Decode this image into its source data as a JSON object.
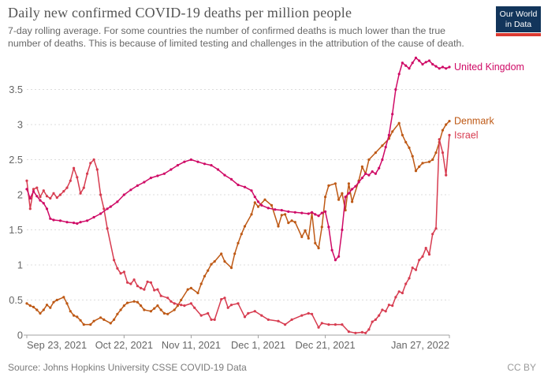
{
  "header": {
    "title": "Daily new confirmed COVID-19 deaths per million people",
    "subtitle": "7-day rolling average. For some countries the number of confirmed deaths is much lower than the true number of deaths. This is because of limited testing and challenges in the attribution of the cause of death.",
    "logo": {
      "line1": "Our World",
      "line2": "in Data",
      "bg_color": "#12355b",
      "bar_color": "#dc3930"
    }
  },
  "chart_data": {
    "type": "line",
    "title": "Daily new confirmed COVID-19 deaths per million people",
    "grid": true,
    "legend_position": "end-of-line",
    "colors": {
      "gridline": "#dcdcdc",
      "axis": "#a0a0a0",
      "tick_text": "#666666"
    },
    "y_axis": {
      "min": 0,
      "max": 4,
      "tick_step": 0.5,
      "tick_labels": [
        "0",
        "0.5",
        "1",
        "1.5",
        "2",
        "2.5",
        "3",
        "3.5"
      ]
    },
    "x_axis": {
      "start_date": "Sep 23, 2021",
      "end_date": "Jan 27, 2022",
      "total_days": 126,
      "ticks": [
        {
          "label": "Sep 23, 2021",
          "day": 0
        },
        {
          "label": "Oct 22, 2021",
          "day": 29
        },
        {
          "label": "Nov 11, 2021",
          "day": 49
        },
        {
          "label": "Dec 1, 2021",
          "day": 69
        },
        {
          "label": "Dec 21, 2021",
          "day": 89
        },
        {
          "label": "Jan 27, 2022",
          "day": 126
        }
      ]
    },
    "series": [
      {
        "name": "Denmark",
        "color": "#BE5915",
        "points": [
          [
            0,
            0.45
          ],
          [
            1,
            0.42
          ],
          [
            2,
            0.4
          ],
          [
            3,
            0.36
          ],
          [
            4,
            0.31
          ],
          [
            5,
            0.36
          ],
          [
            6,
            0.43
          ],
          [
            7,
            0.39
          ],
          [
            8,
            0.47
          ],
          [
            9,
            0.5
          ],
          [
            11,
            0.54
          ],
          [
            12,
            0.45
          ],
          [
            13,
            0.34
          ],
          [
            14,
            0.28
          ],
          [
            15,
            0.26
          ],
          [
            16,
            0.21
          ],
          [
            17,
            0.15
          ],
          [
            19,
            0.15
          ],
          [
            20,
            0.2
          ],
          [
            22,
            0.25
          ],
          [
            23,
            0.22
          ],
          [
            25,
            0.17
          ],
          [
            26,
            0.22
          ],
          [
            27,
            0.3
          ],
          [
            28,
            0.36
          ],
          [
            29,
            0.42
          ],
          [
            30,
            0.46
          ],
          [
            32,
            0.48
          ],
          [
            33,
            0.47
          ],
          [
            34,
            0.42
          ],
          [
            35,
            0.36
          ],
          [
            37,
            0.34
          ],
          [
            38,
            0.38
          ],
          [
            39,
            0.42
          ],
          [
            40,
            0.36
          ],
          [
            41,
            0.31
          ],
          [
            42,
            0.3
          ],
          [
            44,
            0.36
          ],
          [
            45,
            0.42
          ],
          [
            46,
            0.5
          ],
          [
            48,
            0.65
          ],
          [
            49,
            0.67
          ],
          [
            51,
            0.6
          ],
          [
            52,
            0.73
          ],
          [
            53,
            0.84
          ],
          [
            54,
            0.92
          ],
          [
            55,
            1.01
          ],
          [
            56,
            1.05
          ],
          [
            58,
            1.16
          ],
          [
            59,
            1.05
          ],
          [
            61,
            0.96
          ],
          [
            62,
            1.16
          ],
          [
            63,
            1.31
          ],
          [
            64,
            1.44
          ],
          [
            65,
            1.55
          ],
          [
            67,
            1.72
          ],
          [
            68,
            1.89
          ],
          [
            69,
            1.83
          ],
          [
            71,
            1.93
          ],
          [
            73,
            1.85
          ],
          [
            75,
            1.55
          ],
          [
            76,
            1.71
          ],
          [
            77,
            1.72
          ],
          [
            78,
            1.6
          ],
          [
            79,
            1.63
          ],
          [
            80,
            1.61
          ],
          [
            82,
            1.4
          ],
          [
            83,
            1.49
          ],
          [
            84,
            1.38
          ],
          [
            85,
            1.74
          ],
          [
            86,
            1.31
          ],
          [
            87,
            1.24
          ],
          [
            88,
            1.54
          ],
          [
            89,
            1.97
          ],
          [
            90,
            2.13
          ],
          [
            92,
            2.16
          ],
          [
            93,
            1.93
          ],
          [
            94,
            2.02
          ],
          [
            95,
            1.78
          ],
          [
            96,
            2.16
          ],
          [
            97,
            1.9
          ],
          [
            99,
            2.2
          ],
          [
            100,
            2.4
          ],
          [
            101,
            2.3
          ],
          [
            102,
            2.5
          ],
          [
            104,
            2.6
          ],
          [
            106,
            2.7
          ],
          [
            108,
            2.8
          ],
          [
            109,
            2.9
          ],
          [
            111,
            3.02
          ],
          [
            112,
            2.85
          ],
          [
            113,
            2.75
          ],
          [
            114,
            2.67
          ],
          [
            115,
            2.55
          ],
          [
            116,
            2.34
          ],
          [
            117,
            2.4
          ],
          [
            118,
            2.45
          ],
          [
            120,
            2.47
          ],
          [
            121,
            2.5
          ],
          [
            122,
            2.6
          ],
          [
            123,
            2.75
          ],
          [
            124,
            2.92
          ],
          [
            125,
            3.0
          ],
          [
            126,
            3.05
          ]
        ]
      },
      {
        "name": "Israel",
        "color": "#D73C50",
        "points": [
          [
            0,
            2.2
          ],
          [
            1,
            1.8
          ],
          [
            2,
            2.08
          ],
          [
            3,
            2.1
          ],
          [
            4,
            1.97
          ],
          [
            5,
            2.06
          ],
          [
            6,
            1.98
          ],
          [
            7,
            1.95
          ],
          [
            8,
            2.02
          ],
          [
            9,
            1.96
          ],
          [
            10,
            2.0
          ],
          [
            11,
            2.05
          ],
          [
            12,
            2.1
          ],
          [
            13,
            2.2
          ],
          [
            14,
            2.38
          ],
          [
            15,
            2.25
          ],
          [
            16,
            2.02
          ],
          [
            17,
            2.1
          ],
          [
            18,
            2.3
          ],
          [
            19,
            2.45
          ],
          [
            20,
            2.5
          ],
          [
            21,
            2.36
          ],
          [
            22,
            2.0
          ],
          [
            23,
            1.8
          ],
          [
            24,
            1.52
          ],
          [
            26,
            1.07
          ],
          [
            27,
            0.95
          ],
          [
            28,
            0.88
          ],
          [
            29,
            0.9
          ],
          [
            30,
            0.75
          ],
          [
            31,
            0.73
          ],
          [
            32,
            0.79
          ],
          [
            33,
            0.7
          ],
          [
            34,
            0.67
          ],
          [
            35,
            0.65
          ],
          [
            36,
            0.76
          ],
          [
            37,
            0.75
          ],
          [
            38,
            0.64
          ],
          [
            39,
            0.65
          ],
          [
            40,
            0.56
          ],
          [
            42,
            0.53
          ],
          [
            43,
            0.48
          ],
          [
            44,
            0.45
          ],
          [
            46,
            0.43
          ],
          [
            47,
            0.42
          ],
          [
            49,
            0.45
          ],
          [
            50,
            0.39
          ],
          [
            52,
            0.28
          ],
          [
            54,
            0.31
          ],
          [
            55,
            0.22
          ],
          [
            56,
            0.22
          ],
          [
            58,
            0.51
          ],
          [
            59,
            0.53
          ],
          [
            60,
            0.39
          ],
          [
            61,
            0.43
          ],
          [
            63,
            0.45
          ],
          [
            65,
            0.26
          ],
          [
            66,
            0.31
          ],
          [
            68,
            0.34
          ],
          [
            70,
            0.28
          ],
          [
            72,
            0.22
          ],
          [
            75,
            0.2
          ],
          [
            77,
            0.15
          ],
          [
            79,
            0.22
          ],
          [
            82,
            0.28
          ],
          [
            84,
            0.31
          ],
          [
            85,
            0.3
          ],
          [
            87,
            0.11
          ],
          [
            88,
            0.17
          ],
          [
            90,
            0.15
          ],
          [
            92,
            0.15
          ],
          [
            94,
            0.15
          ],
          [
            96,
            0.05
          ],
          [
            98,
            0.03
          ],
          [
            100,
            0.04
          ],
          [
            101,
            0.03
          ],
          [
            102,
            0.08
          ],
          [
            103,
            0.19
          ],
          [
            104,
            0.22
          ],
          [
            105,
            0.28
          ],
          [
            106,
            0.36
          ],
          [
            107,
            0.34
          ],
          [
            108,
            0.43
          ],
          [
            109,
            0.42
          ],
          [
            110,
            0.54
          ],
          [
            111,
            0.62
          ],
          [
            112,
            0.6
          ],
          [
            113,
            0.73
          ],
          [
            114,
            0.81
          ],
          [
            115,
            0.96
          ],
          [
            116,
            0.93
          ],
          [
            117,
            1.07
          ],
          [
            118,
            1.12
          ],
          [
            119,
            1.24
          ],
          [
            120,
            1.15
          ],
          [
            121,
            1.44
          ],
          [
            122,
            1.52
          ],
          [
            123,
            2.79
          ],
          [
            124,
            2.6
          ],
          [
            125,
            2.28
          ],
          [
            126,
            2.85
          ]
        ]
      },
      {
        "name": "United Kingdom",
        "color": "#CF0A66",
        "points": [
          [
            0,
            2.08
          ],
          [
            1,
            1.95
          ],
          [
            2,
            2.05
          ],
          [
            3,
            1.98
          ],
          [
            4,
            1.92
          ],
          [
            5,
            1.88
          ],
          [
            6,
            1.8
          ],
          [
            7,
            1.66
          ],
          [
            8,
            1.64
          ],
          [
            10,
            1.63
          ],
          [
            12,
            1.61
          ],
          [
            14,
            1.6
          ],
          [
            15,
            1.59
          ],
          [
            16,
            1.61
          ],
          [
            18,
            1.63
          ],
          [
            20,
            1.68
          ],
          [
            22,
            1.73
          ],
          [
            24,
            1.8
          ],
          [
            25,
            1.83
          ],
          [
            27,
            1.9
          ],
          [
            29,
            2.0
          ],
          [
            31,
            2.07
          ],
          [
            33,
            2.13
          ],
          [
            35,
            2.18
          ],
          [
            37,
            2.24
          ],
          [
            39,
            2.27
          ],
          [
            41,
            2.3
          ],
          [
            43,
            2.36
          ],
          [
            45,
            2.42
          ],
          [
            47,
            2.47
          ],
          [
            49,
            2.5
          ],
          [
            51,
            2.47
          ],
          [
            53,
            2.44
          ],
          [
            55,
            2.42
          ],
          [
            57,
            2.36
          ],
          [
            59,
            2.28
          ],
          [
            61,
            2.22
          ],
          [
            63,
            2.14
          ],
          [
            65,
            2.11
          ],
          [
            67,
            2.06
          ],
          [
            68,
            1.97
          ],
          [
            69,
            1.9
          ],
          [
            70,
            1.85
          ],
          [
            72,
            1.81
          ],
          [
            74,
            1.79
          ],
          [
            76,
            1.78
          ],
          [
            78,
            1.76
          ],
          [
            80,
            1.75
          ],
          [
            82,
            1.74
          ],
          [
            84,
            1.73
          ],
          [
            85,
            1.75
          ],
          [
            86,
            1.72
          ],
          [
            87,
            1.7
          ],
          [
            88,
            1.74
          ],
          [
            89,
            1.76
          ],
          [
            90,
            1.54
          ],
          [
            91,
            1.21
          ],
          [
            92,
            1.07
          ],
          [
            93,
            1.12
          ],
          [
            94,
            1.5
          ],
          [
            95,
            1.97
          ],
          [
            96,
            2.02
          ],
          [
            97,
            2.08
          ],
          [
            98,
            2.12
          ],
          [
            99,
            2.18
          ],
          [
            100,
            2.24
          ],
          [
            101,
            2.3
          ],
          [
            102,
            2.28
          ],
          [
            103,
            2.33
          ],
          [
            104,
            2.3
          ],
          [
            105,
            2.38
          ],
          [
            106,
            2.5
          ],
          [
            107,
            2.68
          ],
          [
            108,
            2.85
          ],
          [
            109,
            3.15
          ],
          [
            110,
            3.5
          ],
          [
            111,
            3.72
          ],
          [
            112,
            3.88
          ],
          [
            113,
            3.84
          ],
          [
            114,
            3.8
          ],
          [
            115,
            3.88
          ],
          [
            116,
            3.95
          ],
          [
            117,
            3.91
          ],
          [
            118,
            3.86
          ],
          [
            119,
            3.89
          ],
          [
            120,
            3.91
          ],
          [
            121,
            3.86
          ],
          [
            122,
            3.83
          ],
          [
            123,
            3.8
          ],
          [
            124,
            3.82
          ],
          [
            125,
            3.8
          ],
          [
            126,
            3.82
          ]
        ]
      }
    ]
  },
  "footer": {
    "source": "Source: Johns Hopkins University CSSE COVID-19 Data",
    "license": "CC BY"
  }
}
